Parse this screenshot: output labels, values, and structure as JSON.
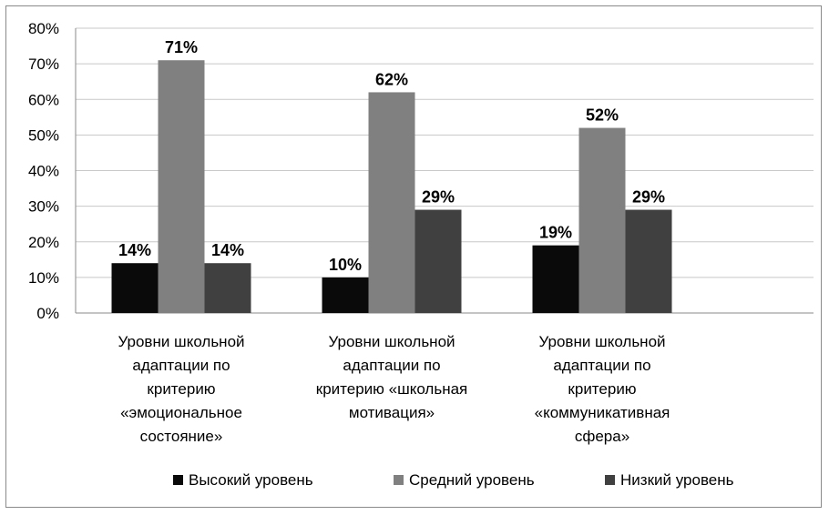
{
  "chart_data": {
    "type": "bar",
    "categories": [
      [
        "Уровни школьной",
        "адаптации по",
        "критерию",
        "«эмоциональное",
        "состояние»"
      ],
      [
        "Уровни школьной",
        "адаптации по",
        "критерию «школьная",
        "мотивация»"
      ],
      [
        "Уровни школьной",
        "адаптации по",
        "критерию",
        "«коммуникативная",
        "сфера»"
      ]
    ],
    "series": [
      {
        "name": "Высокий уровень",
        "color": "#0a0a0a",
        "values": [
          14,
          10,
          19
        ],
        "labels": [
          "14%",
          "10%",
          "19%"
        ]
      },
      {
        "name": "Средний уровень",
        "color": "#808080",
        "values": [
          71,
          62,
          52
        ],
        "labels": [
          "71%",
          "62%",
          "52%"
        ]
      },
      {
        "name": "Низкий уровень",
        "color": "#404040",
        "values": [
          14,
          29,
          29
        ],
        "labels": [
          "14%",
          "29%",
          "29%"
        ]
      }
    ],
    "ylim": [
      0,
      80
    ],
    "yticks": [
      "0%",
      "10%",
      "20%",
      "30%",
      "40%",
      "50%",
      "60%",
      "70%",
      "80%"
    ],
    "grid": true,
    "legend_position": "bottom-right"
  }
}
